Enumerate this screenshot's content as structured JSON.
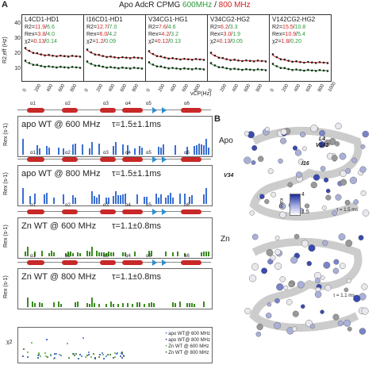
{
  "panel_a": {
    "letter": "A",
    "title_prefix": "Apo AdcR CPMG",
    "title_600": "600MHz",
    "title_sep": "/",
    "title_800": "800 MHz",
    "y_axis_label": "R2,eff (Hz)",
    "x_axis_label": "νCP(Hz)",
    "y_ticks": [
      "40",
      "30",
      "20",
      "10"
    ],
    "x_ticks": [
      "0",
      "200",
      "400",
      "600",
      "800",
      "0",
      "200",
      "400",
      "600",
      "800",
      "0",
      "200",
      "400",
      "600",
      "800",
      "0",
      "200",
      "400",
      "600",
      "800",
      "0",
      "200",
      "400",
      "600",
      "800",
      "1000"
    ],
    "curves": [
      {
        "name": "L4CD1-HD1",
        "r2_label": "R2=",
        "r2_800": "11.9",
        "r2_600": "6.6",
        "rex_label": "Rex=",
        "rex_800": "3.8",
        "rex_600": "4.0",
        "chi_label": "χ2=",
        "chi_800": "0.13",
        "chi_600": "0.14"
      },
      {
        "name": "I16CD1-HD1",
        "r2_label": "R2=",
        "r2_800": "12.7",
        "r2_600": "7.0",
        "rex_label": "Rex=",
        "rex_800": "6.0",
        "rex_600": "4.2",
        "chi_label": "χ2=",
        "chi_800": "1.2",
        "chi_600": "0.09"
      },
      {
        "name": "V34CG1-HG1",
        "r2_label": "R2=",
        "r2_800": "7.6",
        "r2_600": "4.6",
        "rex_label": "Rex=",
        "rex_800": "4.2",
        "rex_600": "3.2",
        "chi_label": "χ2=",
        "chi_800": "0.12",
        "chi_600": "0.13"
      },
      {
        "name": "V34CG2-HG2",
        "r2_label": "R2=",
        "r2_800": "6.2",
        "r2_600": "3.3",
        "rex_label": "Rex=",
        "rex_800": "3.0",
        "rex_600": "1.9",
        "chi_label": "χ2=",
        "chi_800": "0.13",
        "chi_600": "0.05"
      },
      {
        "name": "V142CG2-HG2",
        "r2_label": "R2=",
        "r2_800": "15.5",
        "r2_600": "10.8",
        "rex_label": "Rex=",
        "rex_800": "10.9",
        "rex_600": "5.4",
        "chi_label": "χ2=",
        "chi_800": "1.8",
        "chi_600": "0.20"
      }
    ]
  },
  "rex_panels": [
    {
      "label": "apo WT @ 600 MHz",
      "tau": "τ=1.5±1.1ms",
      "color": "#3a6fd0"
    },
    {
      "label": "apo WT @ 800 MHz",
      "tau": "τ=1.5±1.1ms",
      "color": "#3a6fd0"
    },
    {
      "label": "Zn WT @ 600 MHz",
      "tau": "τ=1.1±0.8ms",
      "color": "#3a8a20"
    },
    {
      "label": "Zn WT @ 800 MHz",
      "tau": "τ=1.1±0.8ms",
      "color": "#3a8a20"
    }
  ],
  "rex_ylabel": "Rex (s-1)",
  "ss_labels": [
    "α1",
    "α2",
    "α3",
    "α4",
    "α5",
    "α6"
  ],
  "chi_panel": {
    "ylabel": "χ2",
    "legend": [
      "apo WT@ 600 MHz",
      "apo WT@ 800 MHz",
      "Zn WT @ 600 MHz",
      "Zn WT @ 800 MHz"
    ],
    "legend_colors": [
      "#3a6fd0",
      "#1a3fa0",
      "#5aaa30",
      "#2a6a10"
    ]
  },
  "panel_b": {
    "letter": "B",
    "apo_label": "Apo",
    "zn_label": "Zn",
    "residue_labels": [
      "L4",
      "V142",
      "I16",
      "V34"
    ],
    "tau_apo": "τ = 1.5 ms",
    "tau_zn": "τ = 1.1 ms",
    "colorbar_label": "Rex",
    "colorbar_max": "4",
    "colorbar_min": "1.5"
  }
}
